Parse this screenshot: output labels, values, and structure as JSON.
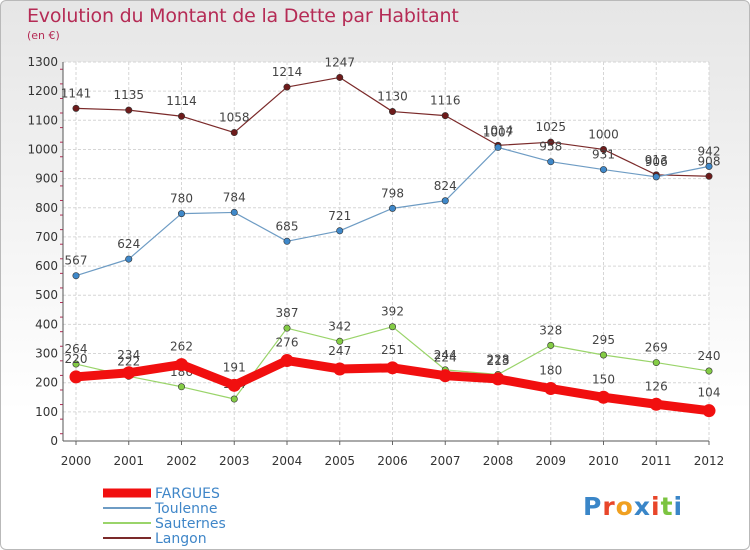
{
  "title": "Evolution du Montant de la Dette par Habitant",
  "subtitle": "(en €)",
  "logo": {
    "text": "Proxiti",
    "colors": [
      "#3a86c8",
      "#e8462a",
      "#f0a020",
      "#3a86c8",
      "#e8462a",
      "#7cc440",
      "#3a86c8"
    ]
  },
  "chart_data": {
    "type": "line",
    "title": "Evolution du Montant de la Dette par Habitant",
    "subtitle": "(en €)",
    "ylim": [
      0,
      1300
    ],
    "y_ticks": [
      "0",
      "100",
      "200",
      "300",
      "400",
      "500",
      "600",
      "700",
      "800",
      "900",
      "1000",
      "1100",
      "1200",
      "1300"
    ],
    "x": [
      "2000",
      "2001",
      "2002",
      "2003",
      "2004",
      "2005",
      "2006",
      "2007",
      "2008",
      "2009",
      "2010",
      "2011",
      "2012"
    ],
    "grid": true,
    "legend_position": "bottom-left",
    "series": [
      {
        "name": "Langon",
        "color": "#7b2a2a",
        "marker": "#6e1b1b",
        "width": 1.2,
        "label_offset": -11,
        "values": [
          1141,
          1135,
          1114,
          1058,
          1214,
          1247,
          1130,
          1116,
          1014,
          1025,
          1000,
          913,
          908
        ]
      },
      {
        "name": "Toulenne",
        "color": "#6e9cc4",
        "marker": "#3f88c9",
        "width": 1.2,
        "label_offset": -11,
        "values": [
          567,
          624,
          780,
          784,
          685,
          721,
          798,
          824,
          1007,
          958,
          931,
          906,
          942
        ]
      },
      {
        "name": "Sauternes",
        "color": "#9ad46a",
        "marker": "#84cc45",
        "width": 1.2,
        "label_offset": -11,
        "values": [
          264,
          222,
          186,
          144,
          387,
          342,
          392,
          244,
          228,
          328,
          295,
          269,
          240
        ]
      },
      {
        "name": "FARGUES",
        "color": "#f10f0f",
        "marker": "#f10f0f",
        "width": 9,
        "label_offset": -14,
        "values": [
          220,
          234,
          262,
          191,
          276,
          247,
          251,
          224,
          213,
          180,
          150,
          126,
          104
        ]
      }
    ]
  },
  "legend": [
    {
      "name": "FARGUES",
      "color": "#f10f0f",
      "width": 9
    },
    {
      "name": "Toulenne",
      "color": "#6e9cc4",
      "width": 2
    },
    {
      "name": "Sauternes",
      "color": "#9ad46a",
      "width": 2
    },
    {
      "name": "Langon",
      "color": "#7b2a2a",
      "width": 2
    }
  ]
}
